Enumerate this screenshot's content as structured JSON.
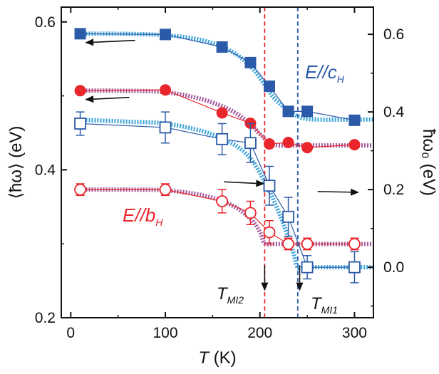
{
  "chart_data": {
    "type": "scatter",
    "x_axis": {
      "label_prefix": "T",
      "label_suffix": " (K)",
      "range": [
        -10,
        320
      ],
      "ticks": [
        0,
        100,
        200,
        300
      ],
      "tick_labels": [
        "0",
        "100",
        "200",
        "300"
      ]
    },
    "y_left": {
      "label": "⟨ħω⟩ (eV)",
      "range": [
        0.2,
        0.62
      ],
      "ticks": [
        0.2,
        0.4,
        0.6
      ],
      "tick_labels": [
        "0.2",
        "0.4",
        "0.6"
      ]
    },
    "y_right": {
      "label": "ħω₀ (eV)",
      "range": [
        -0.13,
        0.67
      ],
      "ticks": [
        0.0,
        0.2,
        0.4,
        0.6
      ],
      "tick_labels": [
        "0.0",
        "0.2",
        "0.4",
        "0.6"
      ]
    },
    "series": [
      {
        "axis": "left",
        "marker": "square-filled",
        "color": "#2b5aa8",
        "x": [
          10,
          100,
          160,
          190,
          210,
          230,
          250,
          300
        ],
        "y": [
          0.584,
          0.583,
          0.566,
          0.545,
          0.513,
          0.479,
          0.479,
          0.467
        ]
      },
      {
        "axis": "left",
        "marker": "circle-filled",
        "color": "#e8262b",
        "x": [
          10,
          100,
          160,
          190,
          210,
          230,
          250,
          300
        ],
        "y": [
          0.507,
          0.508,
          0.477,
          0.463,
          0.435,
          0.437,
          0.43,
          0.434
        ]
      },
      {
        "axis": "right",
        "marker": "square-open",
        "color": "#2b5aa8",
        "x": [
          10,
          100,
          160,
          190,
          210,
          230,
          250,
          300
        ],
        "y": [
          0.37,
          0.36,
          0.33,
          0.32,
          0.21,
          0.13,
          0.0,
          0.0
        ],
        "err": [
          0.03,
          0.04,
          0.04,
          0.05,
          0.05,
          0.05,
          0.03,
          0.04
        ]
      },
      {
        "axis": "right",
        "marker": "circle-open",
        "color": "#e8262b",
        "x": [
          10,
          100,
          160,
          190,
          210,
          230,
          250,
          300
        ],
        "y": [
          0.2,
          0.2,
          0.17,
          0.14,
          0.09,
          0.06,
          0.06,
          0.06
        ],
        "err": [
          0.015,
          0.015,
          0.03,
          0.03,
          0.03,
          0.015,
          0.015,
          0.015
        ]
      }
    ],
    "fits": [
      {
        "axis": "left",
        "color": "#3aa3d8",
        "x": [
          10,
          50,
          100,
          140,
          170,
          190,
          205,
          215,
          225,
          235,
          245,
          260,
          300,
          320
        ],
        "y": [
          0.584,
          0.584,
          0.582,
          0.575,
          0.56,
          0.54,
          0.515,
          0.497,
          0.485,
          0.476,
          0.47,
          0.468,
          0.468,
          0.468
        ]
      },
      {
        "axis": "left",
        "color": "#a3569b",
        "x": [
          10,
          50,
          100,
          140,
          170,
          190,
          200,
          210,
          220,
          240,
          300,
          320
        ],
        "y": [
          0.507,
          0.507,
          0.505,
          0.495,
          0.48,
          0.462,
          0.448,
          0.437,
          0.433,
          0.433,
          0.433,
          0.433
        ]
      },
      {
        "axis": "right",
        "color": "#3aa3d8",
        "x": [
          10,
          60,
          100,
          140,
          170,
          190,
          205,
          215,
          225,
          235,
          240,
          250,
          300,
          320
        ],
        "y": [
          0.38,
          0.375,
          0.37,
          0.35,
          0.32,
          0.28,
          0.22,
          0.17,
          0.11,
          0.04,
          0.0,
          0.0,
          0.0,
          0.0
        ]
      },
      {
        "axis": "right",
        "color": "#a3569b",
        "x": [
          10,
          60,
          100,
          140,
          170,
          190,
          200,
          205,
          215,
          240,
          300,
          320
        ],
        "y": [
          0.2,
          0.2,
          0.198,
          0.185,
          0.16,
          0.125,
          0.09,
          0.062,
          0.06,
          0.06,
          0.06,
          0.06
        ]
      }
    ],
    "vlines": [
      {
        "x": 205,
        "color": "#e8262b"
      },
      {
        "x": 240,
        "color": "#2b5aa8"
      }
    ],
    "arrows": [
      {
        "axis": "left",
        "x1": 68,
        "y1": 0.575,
        "x2": 15,
        "y2": 0.572,
        "dir": "left"
      },
      {
        "axis": "left",
        "x1": 62,
        "y1": 0.498,
        "x2": 15,
        "y2": 0.495,
        "dir": "left"
      },
      {
        "axis": "right",
        "x1": 162,
        "y1": 0.22,
        "x2": 205,
        "y2": 0.215,
        "dir": "right"
      },
      {
        "axis": "right",
        "x1": 261,
        "y1": 0.195,
        "x2": 305,
        "y2": 0.193,
        "dir": "right"
      },
      {
        "axis": "left",
        "x1": 205,
        "y1": 0.271,
        "x2": 205,
        "y2": 0.236,
        "dir": "down"
      },
      {
        "axis": "left",
        "x1": 242,
        "y1": 0.271,
        "x2": 242,
        "y2": 0.236,
        "dir": "down"
      }
    ],
    "annotations": {
      "e_c": {
        "main": "E//c",
        "sub": "H",
        "color": "#2b5aa8"
      },
      "e_b": {
        "main": "E//b",
        "sub": "H",
        "color": "#e8262b"
      },
      "tmi2": {
        "main": "T",
        "sub": "MI2",
        "color": "#111111"
      },
      "tmi1": {
        "main": "T",
        "sub": "MI1",
        "color": "#111111"
      }
    }
  }
}
